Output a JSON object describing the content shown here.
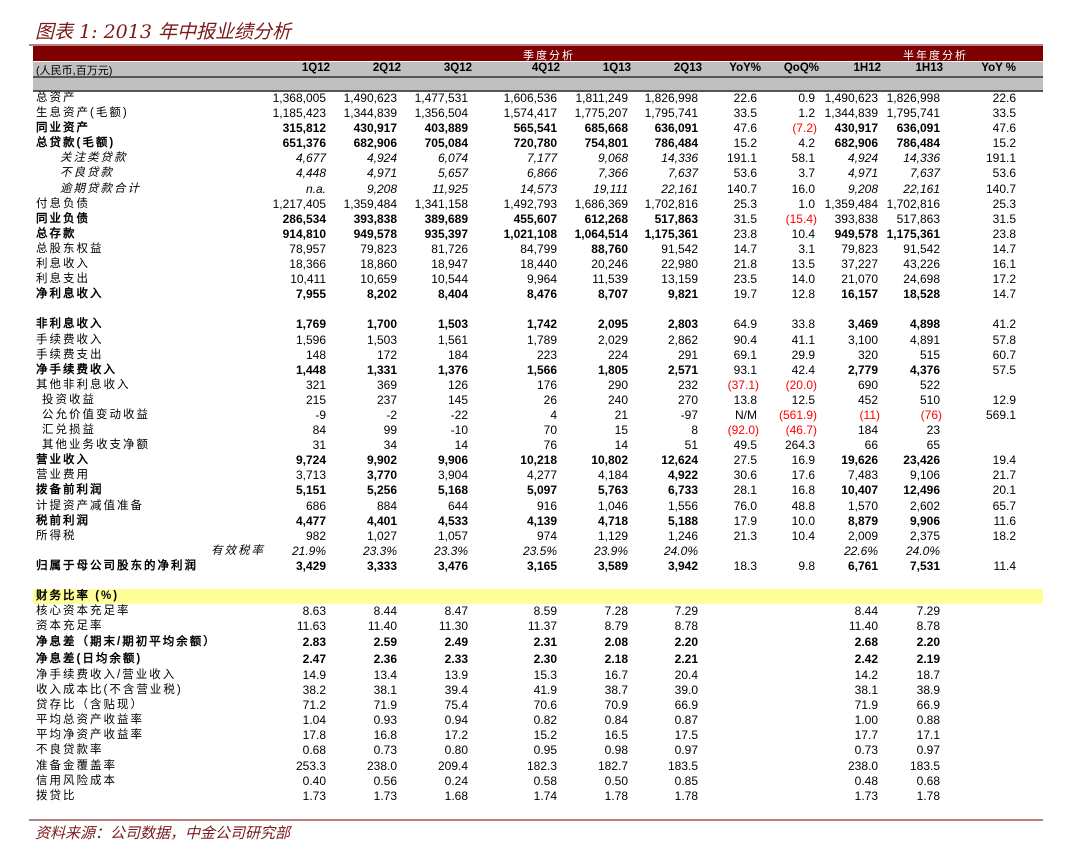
{
  "title": "图表 1: 2013 年中报业绩分析",
  "source": "资料来源：公司数据，中金公司研究部",
  "colors": {
    "band": "#7f0000",
    "header": "#c0c0c0",
    "negative": "#ff0000",
    "highlight": "#ffff99",
    "title": "#7a1a1a"
  },
  "table": {
    "group_quarterly": "季度分析",
    "group_half": "半年度分析",
    "unit_label": "(人民币,百万元)",
    "columns": [
      "1Q12",
      "2Q12",
      "3Q12",
      "4Q12",
      "1Q13",
      "2Q13",
      "YoY%",
      "QoQ%",
      "1H12",
      "1H13",
      "YoY %"
    ],
    "rows": [
      {
        "label": "总资产",
        "values": [
          "1,368,005",
          "1,490,623",
          "1,477,531",
          "1,606,536",
          "1,811,249",
          "1,826,998",
          "22.6",
          "0.9",
          "1,490,623",
          "1,826,998",
          "22.6"
        ]
      },
      {
        "label": "生息资产(毛额)",
        "values": [
          "1,185,423",
          "1,344,839",
          "1,356,504",
          "1,574,417",
          "1,775,207",
          "1,795,741",
          "33.5",
          "1.2",
          "1,344,839",
          "1,795,741",
          "33.5"
        ]
      },
      {
        "label": "同业资产",
        "style": "bold",
        "values": [
          "315,812",
          "430,917",
          "403,889",
          "565,541",
          "685,668",
          "636,091",
          "47.6",
          "(7.2)",
          "430,917",
          "636,091",
          "47.6"
        ]
      },
      {
        "label": "总贷款(毛额)",
        "style": "bold",
        "values": [
          "651,376",
          "682,906",
          "705,084",
          "720,780",
          "754,801",
          "786,484",
          "15.2",
          "4.2",
          "682,906",
          "786,484",
          "15.2"
        ]
      },
      {
        "label": "关注类贷款",
        "style": "italic",
        "level": 2,
        "values": [
          "4,677",
          "4,924",
          "6,074",
          "7,177",
          "9,068",
          "14,336",
          "191.1",
          "58.1",
          "4,924",
          "14,336",
          "191.1"
        ]
      },
      {
        "label": "不良贷款",
        "style": "italic",
        "level": 2,
        "values": [
          "4,448",
          "4,971",
          "5,657",
          "6,866",
          "7,366",
          "7,637",
          "53.6",
          "3.7",
          "4,971",
          "7,637",
          "53.6"
        ]
      },
      {
        "label": "逾期贷款合计",
        "style": "italic",
        "level": 2,
        "values": [
          "n.a.",
          "9,208",
          "11,925",
          "14,573",
          "19,111",
          "22,161",
          "140.7",
          "16.0",
          "9,208",
          "22,161",
          "140.7"
        ]
      },
      {
        "label": "付息负债",
        "values": [
          "1,217,405",
          "1,359,484",
          "1,341,158",
          "1,492,793",
          "1,686,369",
          "1,702,816",
          "25.3",
          "1.0",
          "1,359,484",
          "1,702,816",
          "25.3"
        ]
      },
      {
        "label": "同业负债",
        "style": "bold",
        "bold_cols": [
          0,
          1,
          2,
          3,
          4,
          5
        ],
        "values": [
          "286,534",
          "393,838",
          "389,689",
          "455,607",
          "612,268",
          "517,863",
          "31.5",
          "(15.4)",
          "393,838",
          "517,863",
          "31.5"
        ]
      },
      {
        "label": "总存款",
        "style": "bold",
        "values": [
          "914,810",
          "949,578",
          "935,397",
          "1,021,108",
          "1,064,514",
          "1,175,361",
          "23.8",
          "10.4",
          "949,578",
          "1,175,361",
          "23.8"
        ]
      },
      {
        "label": "总股东权益",
        "bold_cols": [
          4
        ],
        "values": [
          "78,957",
          "79,823",
          "81,726",
          "84,799",
          "88,760",
          "91,542",
          "14.7",
          "3.1",
          "79,823",
          "91,542",
          "14.7"
        ]
      },
      {
        "label": "利息收入",
        "values": [
          "18,366",
          "18,860",
          "18,947",
          "18,440",
          "20,246",
          "22,980",
          "21.8",
          "13.5",
          "37,227",
          "43,226",
          "16.1"
        ]
      },
      {
        "label": "利息支出",
        "values": [
          "10,411",
          "10,659",
          "10,544",
          "9,964",
          "11,539",
          "13,159",
          "23.5",
          "14.0",
          "21,070",
          "24,698",
          "17.2"
        ]
      },
      {
        "label": "净利息收入",
        "style": "bold",
        "values": [
          "7,955",
          "8,202",
          "8,404",
          "8,476",
          "8,707",
          "9,821",
          "19.7",
          "12.8",
          "16,157",
          "18,528",
          "14.7"
        ]
      },
      {
        "label": "",
        "values": []
      },
      {
        "label": "非利息收入",
        "style": "bold",
        "values": [
          "1,769",
          "1,700",
          "1,503",
          "1,742",
          "2,095",
          "2,803",
          "64.9",
          "33.8",
          "3,469",
          "4,898",
          "41.2"
        ]
      },
      {
        "label": "手续费收入",
        "values": [
          "1,596",
          "1,503",
          "1,561",
          "1,789",
          "2,029",
          "2,862",
          "90.4",
          "41.1",
          "3,100",
          "4,891",
          "57.8"
        ]
      },
      {
        "label": "手续费支出",
        "values": [
          "148",
          "172",
          "184",
          "223",
          "224",
          "291",
          "69.1",
          "29.9",
          "320",
          "515",
          "60.7"
        ]
      },
      {
        "label": "净手续费收入",
        "style": "bold",
        "values": [
          "1,448",
          "1,331",
          "1,376",
          "1,566",
          "1,805",
          "2,571",
          "93.1",
          "42.4",
          "2,779",
          "4,376",
          "57.5"
        ]
      },
      {
        "label": "其他非利息收入",
        "values": [
          "321",
          "369",
          "126",
          "176",
          "290",
          "232",
          "(37.1)",
          "(20.0)",
          "690",
          "522",
          ""
        ]
      },
      {
        "label": "投资收益",
        "level": 1,
        "values": [
          "215",
          "237",
          "145",
          "26",
          "240",
          "270",
          "13.8",
          "12.5",
          "452",
          "510",
          "12.9"
        ]
      },
      {
        "label": "公允价值变动收益",
        "level": 1,
        "values": [
          "-9",
          "-2",
          "-22",
          "4",
          "21",
          "-97",
          "N/M",
          "(561.9)",
          "(11)",
          "(76)",
          "569.1"
        ]
      },
      {
        "label": "汇兑损益",
        "level": 1,
        "values": [
          "84",
          "99",
          "-10",
          "70",
          "15",
          "8",
          "(92.0)",
          "(46.7)",
          "184",
          "23",
          ""
        ]
      },
      {
        "label": "其他业务收支净额",
        "level": 1,
        "values": [
          "31",
          "34",
          "14",
          "76",
          "14",
          "51",
          "49.5",
          "264.3",
          "66",
          "65",
          ""
        ]
      },
      {
        "label": "营业收入",
        "style": "bold",
        "values": [
          "9,724",
          "9,902",
          "9,906",
          "10,218",
          "10,802",
          "12,624",
          "27.5",
          "16.9",
          "19,626",
          "23,426",
          "19.4"
        ]
      },
      {
        "label": "营业费用",
        "bold_cols": [
          1,
          5
        ],
        "values": [
          "3,713",
          "3,770",
          "3,904",
          "4,277",
          "4,184",
          "4,922",
          "30.6",
          "17.6",
          "7,483",
          "9,106",
          "21.7"
        ]
      },
      {
        "label": "拨备前利润",
        "style": "bold",
        "values": [
          "5,151",
          "5,256",
          "5,168",
          "5,097",
          "5,763",
          "6,733",
          "28.1",
          "16.8",
          "10,407",
          "12,496",
          "20.1"
        ]
      },
      {
        "label": "计提资产减值准备",
        "values": [
          "686",
          "884",
          "644",
          "916",
          "1,046",
          "1,556",
          "76.0",
          "48.8",
          "1,570",
          "2,602",
          "65.7"
        ]
      },
      {
        "label": "税前利润",
        "style": "bold",
        "values": [
          "4,477",
          "4,401",
          "4,533",
          "4,139",
          "4,718",
          "5,188",
          "17.9",
          "10.0",
          "8,879",
          "9,906",
          "11.6"
        ]
      },
      {
        "label": "所得税",
        "values": [
          "982",
          "1,027",
          "1,057",
          "974",
          "1,129",
          "1,246",
          "21.3",
          "10.4",
          "2,009",
          "2,375",
          "18.2"
        ]
      },
      {
        "label": "有效税率",
        "style": "italic-all",
        "level": 3,
        "values": [
          "21.9%",
          "23.3%",
          "23.3%",
          "23.5%",
          "23.9%",
          "24.0%",
          "",
          "",
          "22.6%",
          "24.0%",
          ""
        ]
      },
      {
        "label": "归属于母公司股东的净利润",
        "style": "bold",
        "values": [
          "3,429",
          "3,333",
          "3,476",
          "3,165",
          "3,589",
          "3,942",
          "18.3",
          "9.8",
          "6,761",
          "7,531",
          "11.4"
        ]
      },
      {
        "label": "",
        "values": []
      },
      {
        "label": "财务比率 (%)",
        "style": "section",
        "values": []
      },
      {
        "label": "核心资本充足率",
        "values": [
          "8.63",
          "8.44",
          "8.47",
          "8.59",
          "7.28",
          "7.29",
          "",
          "",
          "8.44",
          "7.29",
          ""
        ]
      },
      {
        "label": "资本充足率",
        "values": [
          "11.63",
          "11.40",
          "11.30",
          "11.37",
          "8.79",
          "8.78",
          "",
          "",
          "11.40",
          "8.78",
          ""
        ]
      },
      {
        "label": "净息差（期末/期初平均余额）",
        "style": "bold-tall",
        "values": [
          "2.83",
          "2.59",
          "2.49",
          "2.31",
          "2.08",
          "2.20",
          "",
          "",
          "2.68",
          "2.20",
          ""
        ]
      },
      {
        "label": "净息差(日均余额)",
        "style": "bold-tall",
        "values": [
          "2.47",
          "2.36",
          "2.33",
          "2.30",
          "2.18",
          "2.21",
          "",
          "",
          "2.42",
          "2.19",
          ""
        ]
      },
      {
        "label": "净手续费收入/营业收入",
        "values": [
          "14.9",
          "13.4",
          "13.9",
          "15.3",
          "16.7",
          "20.4",
          "",
          "",
          "14.2",
          "18.7",
          ""
        ]
      },
      {
        "label": "收入成本比(不含营业税)",
        "values": [
          "38.2",
          "38.1",
          "39.4",
          "41.9",
          "38.7",
          "39.0",
          "",
          "",
          "38.1",
          "38.9",
          ""
        ]
      },
      {
        "label": "贷存比（含贴现）",
        "values": [
          "71.2",
          "71.9",
          "75.4",
          "70.6",
          "70.9",
          "66.9",
          "",
          "",
          "71.9",
          "66.9",
          ""
        ]
      },
      {
        "label": "平均总资产收益率",
        "values": [
          "1.04",
          "0.93",
          "0.94",
          "0.82",
          "0.84",
          "0.87",
          "",
          "",
          "1.00",
          "0.88",
          ""
        ]
      },
      {
        "label": "平均净资产收益率",
        "values": [
          "17.8",
          "16.8",
          "17.2",
          "15.2",
          "16.5",
          "17.5",
          "",
          "",
          "17.7",
          "17.1",
          ""
        ]
      },
      {
        "label": "不良贷款率",
        "values": [
          "0.68",
          "0.73",
          "0.80",
          "0.95",
          "0.98",
          "0.97",
          "",
          "",
          "0.73",
          "0.97",
          ""
        ]
      },
      {
        "label": "准备金覆盖率",
        "values": [
          "253.3",
          "238.0",
          "209.4",
          "182.3",
          "182.7",
          "183.5",
          "",
          "",
          "238.0",
          "183.5",
          ""
        ]
      },
      {
        "label": "信用风险成本",
        "values": [
          "0.40",
          "0.56",
          "0.24",
          "0.58",
          "0.50",
          "0.85",
          "",
          "",
          "0.48",
          "0.68",
          ""
        ]
      },
      {
        "label": "拨贷比",
        "values": [
          "1.73",
          "1.73",
          "1.68",
          "1.74",
          "1.78",
          "1.78",
          "",
          "",
          "1.73",
          "1.78",
          ""
        ]
      }
    ]
  }
}
